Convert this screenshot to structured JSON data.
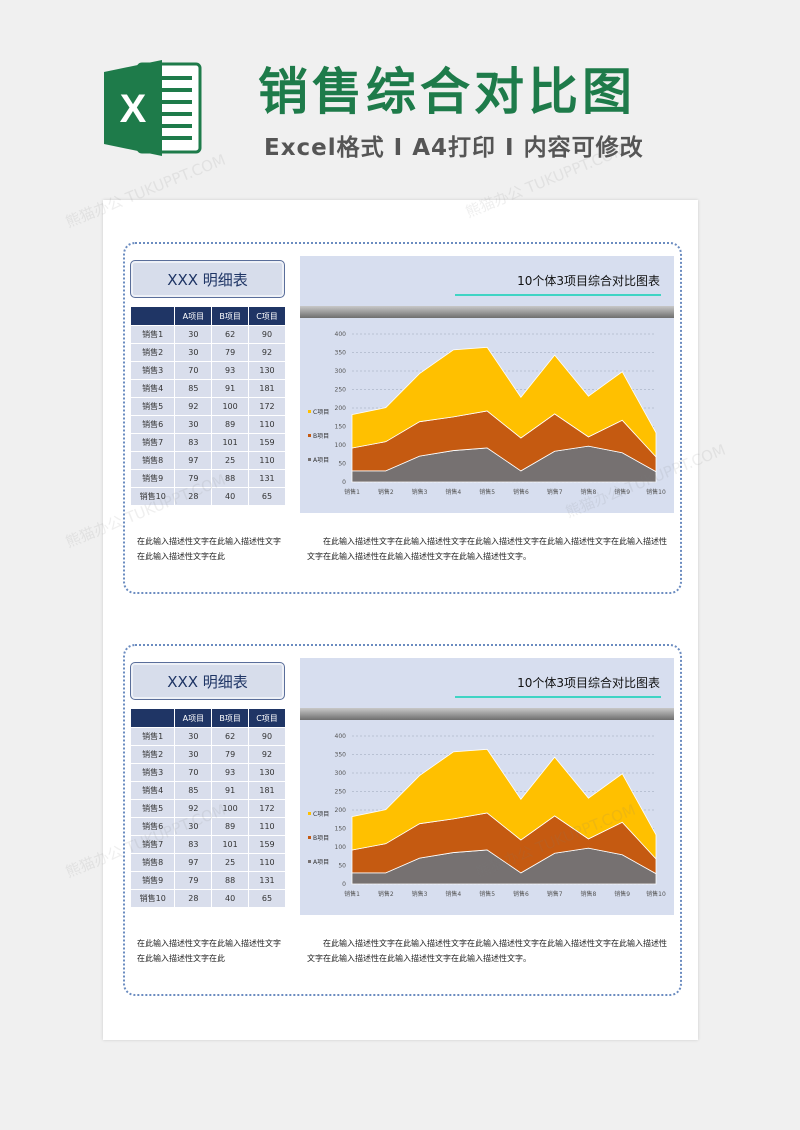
{
  "header": {
    "title": "销售综合对比图",
    "subtitle": "Excel格式 I A4打印 I 内容可修改",
    "logo_letter": "X"
  },
  "watermark": "熊猫办公 TUKUPPT.COM",
  "colors": {
    "brand_green": "#1e7b4a",
    "navy": "#1f3565",
    "cell": "#d9deec",
    "series_A": "#767171",
    "series_B": "#c55a11",
    "series_C": "#ffc000"
  },
  "blocks": [
    {
      "table_title": "XXX 明细表",
      "columns": [
        "",
        "A项目",
        "B项目",
        "C项目"
      ],
      "rows": [
        [
          "销售1",
          "30",
          "62",
          "90"
        ],
        [
          "销售2",
          "30",
          "79",
          "92"
        ],
        [
          "销售3",
          "70",
          "93",
          "130"
        ],
        [
          "销售4",
          "85",
          "91",
          "181"
        ],
        [
          "销售5",
          "92",
          "100",
          "172"
        ],
        [
          "销售6",
          "30",
          "89",
          "110"
        ],
        [
          "销售7",
          "83",
          "101",
          "159"
        ],
        [
          "销售8",
          "97",
          "25",
          "110"
        ],
        [
          "销售9",
          "79",
          "88",
          "131"
        ],
        [
          "销售10",
          "28",
          "40",
          "65"
        ]
      ],
      "desc_left": "在此输入描述性文字在此输入描述性文字在此输入描述性文字在此",
      "desc_right": "在此输入描述性文字在此输入描述性文字在此输入描述性文字在此输入描述性文字在此输入描述性文字在此输入描述性在此输入描述性文字在此输入描述性文字。",
      "chart_title": "10个体3项目综合对比图表"
    },
    {
      "table_title": "XXX 明细表",
      "columns": [
        "",
        "A项目",
        "B项目",
        "C项目"
      ],
      "rows": [
        [
          "销售1",
          "30",
          "62",
          "90"
        ],
        [
          "销售2",
          "30",
          "79",
          "92"
        ],
        [
          "销售3",
          "70",
          "93",
          "130"
        ],
        [
          "销售4",
          "85",
          "91",
          "181"
        ],
        [
          "销售5",
          "92",
          "100",
          "172"
        ],
        [
          "销售6",
          "30",
          "89",
          "110"
        ],
        [
          "销售7",
          "83",
          "101",
          "159"
        ],
        [
          "销售8",
          "97",
          "25",
          "110"
        ],
        [
          "销售9",
          "79",
          "88",
          "131"
        ],
        [
          "销售10",
          "28",
          "40",
          "65"
        ]
      ],
      "desc_left": "在此输入描述性文字在此输入描述性文字在此输入描述性文字在此",
      "desc_right": "在此输入描述性文字在此输入描述性文字在此输入描述性文字在此输入描述性文字在此输入描述性文字在此输入描述性在此输入描述性文字在此输入描述性文字。",
      "chart_title": "10个体3项目综合对比图表"
    }
  ],
  "chart_data": [
    {
      "type": "area",
      "stacked": true,
      "title": "10个体3项目综合对比图表",
      "categories": [
        "销售1",
        "销售2",
        "销售3",
        "销售4",
        "销售5",
        "销售6",
        "销售7",
        "销售8",
        "销售9",
        "销售10"
      ],
      "series": [
        {
          "name": "A项目",
          "values": [
            30,
            30,
            70,
            85,
            92,
            30,
            83,
            97,
            79,
            28
          ]
        },
        {
          "name": "B项目",
          "values": [
            62,
            79,
            93,
            91,
            100,
            89,
            101,
            25,
            88,
            40
          ]
        },
        {
          "name": "C项目",
          "values": [
            90,
            92,
            130,
            181,
            172,
            110,
            159,
            110,
            131,
            65
          ]
        }
      ],
      "yticks": [
        "0",
        "50",
        "100",
        "150",
        "200",
        "250",
        "300",
        "350",
        "400"
      ],
      "ylim": [
        0,
        400
      ],
      "grid": true,
      "legend": "left"
    },
    {
      "type": "area",
      "stacked": true,
      "title": "10个体3项目综合对比图表",
      "categories": [
        "销售1",
        "销售2",
        "销售3",
        "销售4",
        "销售5",
        "销售6",
        "销售7",
        "销售8",
        "销售9",
        "销售10"
      ],
      "series": [
        {
          "name": "A项目",
          "values": [
            30,
            30,
            70,
            85,
            92,
            30,
            83,
            97,
            79,
            28
          ]
        },
        {
          "name": "B项目",
          "values": [
            62,
            79,
            93,
            91,
            100,
            89,
            101,
            25,
            88,
            40
          ]
        },
        {
          "name": "C项目",
          "values": [
            90,
            92,
            130,
            181,
            172,
            110,
            159,
            110,
            131,
            65
          ]
        }
      ],
      "yticks": [
        "0",
        "50",
        "100",
        "150",
        "200",
        "250",
        "300",
        "350",
        "400"
      ],
      "ylim": [
        0,
        400
      ],
      "grid": true,
      "legend": "left"
    }
  ]
}
